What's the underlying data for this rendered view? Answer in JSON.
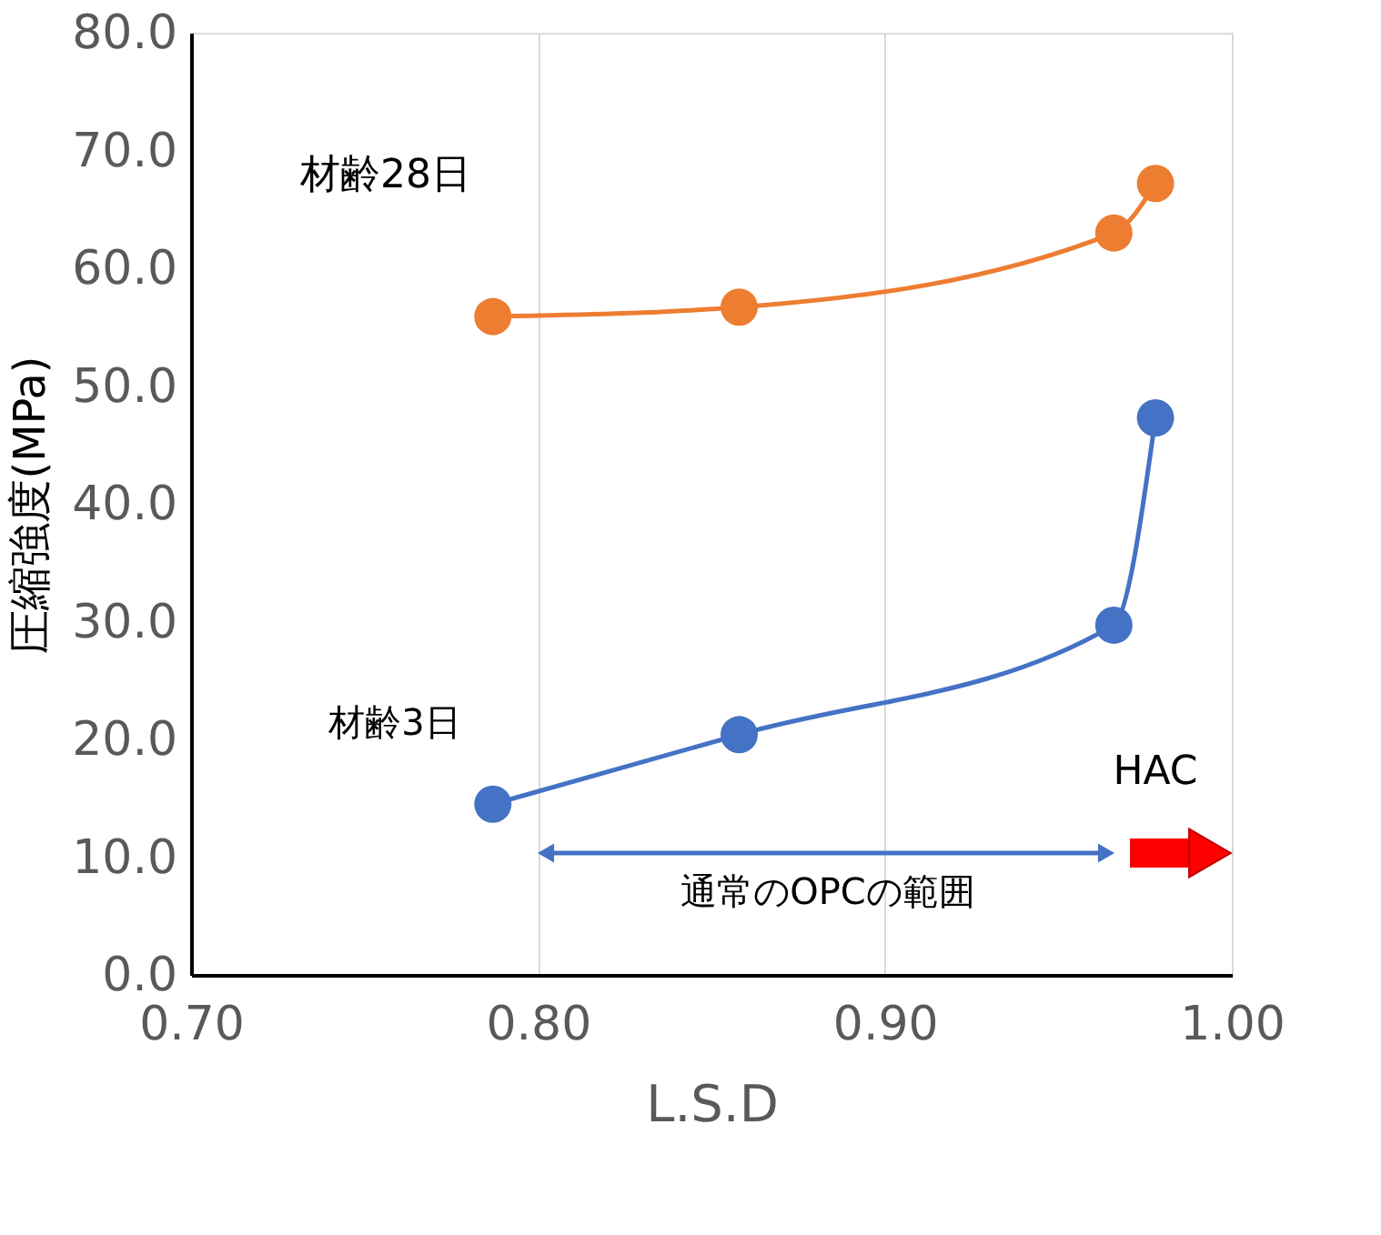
{
  "chart_data": {
    "type": "line",
    "xlabel": "L.S.D",
    "ylabel": "圧縮強度(MPa)",
    "series": [
      {
        "color": "#ed7d31",
        "x": [
          0.787,
          0.858,
          0.966,
          0.978
        ],
        "values": [
          55.9,
          56.7,
          63.0,
          67.2
        ]
      },
      {
        "color": "#4472c4",
        "x": [
          0.787,
          0.858,
          0.966,
          0.978
        ],
        "values": [
          14.5,
          20.4,
          29.7,
          47.3
        ]
      }
    ],
    "xlim": [
      0.7,
      1.0
    ],
    "xticks": [
      {
        "value": 0.7,
        "label": "0.70"
      },
      {
        "value": 0.8,
        "label": "0.80"
      },
      {
        "value": 0.9,
        "label": "0.90"
      },
      {
        "value": 1.0,
        "label": "1.00"
      }
    ],
    "ylim": [
      0,
      80
    ],
    "yticks": [
      {
        "value": 0,
        "label": "0.0"
      },
      {
        "value": 10,
        "label": "10.0"
      },
      {
        "value": 20,
        "label": "20.0"
      },
      {
        "value": 30,
        "label": "30.0"
      },
      {
        "value": 40,
        "label": "40.0"
      },
      {
        "value": 50,
        "label": "50.0"
      },
      {
        "value": 60,
        "label": "60.0"
      },
      {
        "value": 70,
        "label": "70.0"
      },
      {
        "value": 80,
        "label": "80.0"
      }
    ],
    "grid": "x",
    "marker": "circle",
    "line_style": "solid",
    "annotations": [
      "材齢28日",
      "材齢3日",
      "HAC",
      "通常のOPCの範囲"
    ]
  }
}
